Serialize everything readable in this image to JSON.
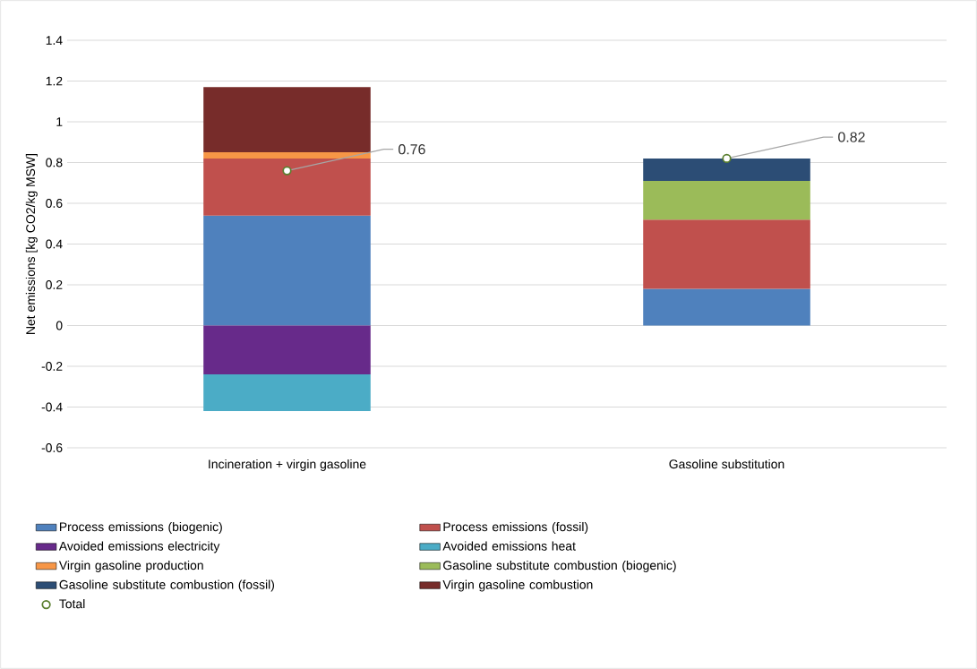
{
  "chart_data": {
    "type": "bar",
    "stacked": true,
    "ylabel": "Net emissions [kg CO2/kg MSW]",
    "categories": [
      "Incineration + virgin gasoline",
      "Gasoline substitution"
    ],
    "ylim": [
      -0.6,
      1.4
    ],
    "yticks": [
      -0.6,
      -0.4,
      -0.2,
      0,
      0.2,
      0.4,
      0.6,
      0.8,
      1,
      1.2,
      1.4
    ],
    "grid": "y",
    "legend": "bottom",
    "series": [
      {
        "name": "Process emissions (biogenic)",
        "color": "#4f81bd",
        "values": [
          0.54,
          0.18
        ]
      },
      {
        "name": "Process emissions (fossil)",
        "color": "#c0504d",
        "values": [
          0.28,
          0.34
        ]
      },
      {
        "name": "Avoided emissions electricity",
        "color": "#672a8a",
        "values": [
          -0.24,
          null
        ]
      },
      {
        "name": "Avoided emissions heat",
        "color": "#4bacc6",
        "values": [
          -0.18,
          null
        ]
      },
      {
        "name": "Virgin gasoline production",
        "color": "#f79646",
        "values": [
          0.03,
          null
        ]
      },
      {
        "name": "Gasoline substitute combustion (biogenic)",
        "color": "#9bbb59",
        "values": [
          null,
          0.19
        ]
      },
      {
        "name": "Gasoline substitute combustion (fossil)",
        "color": "#2c4d75",
        "values": [
          null,
          0.11
        ]
      },
      {
        "name": "Virgin gasoline combustion",
        "color": "#772c2a",
        "values": [
          0.32,
          null
        ]
      },
      {
        "name": "Total",
        "type": "scatter",
        "marker": "circle",
        "color": "#5a7f2f",
        "values": [
          0.76,
          0.82
        ],
        "value_labels": [
          "0.76",
          "0.82"
        ]
      }
    ]
  }
}
